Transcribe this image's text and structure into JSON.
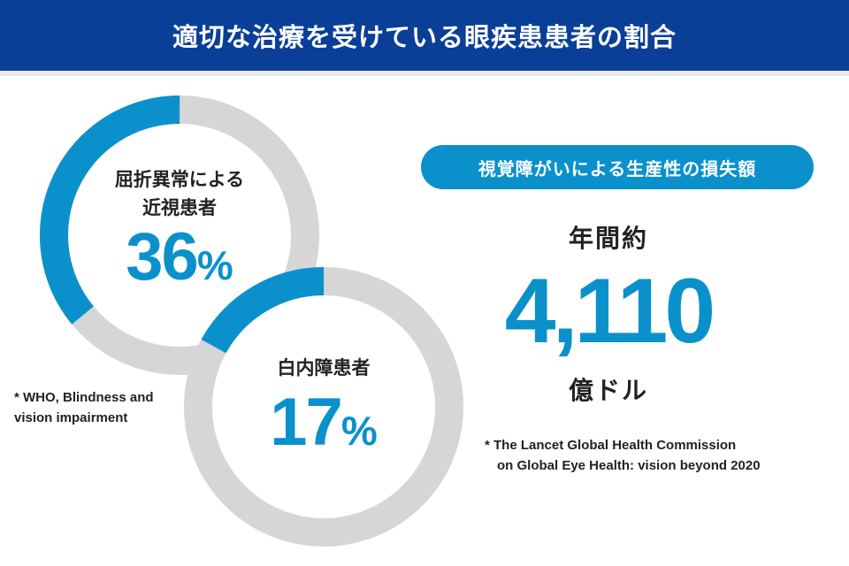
{
  "header": {
    "title": "適切な治療を受けている眼疾患患者の割合"
  },
  "colors": {
    "header_bg": "#0a3f97",
    "accent": "#0a91cc",
    "track": "#d6d6d6"
  },
  "chart_data": [
    {
      "type": "pie",
      "title": "屈折異常による近視患者",
      "label_lines": [
        "屈折異常による",
        "近視患者"
      ],
      "values": [
        36,
        64
      ],
      "value_text": "36",
      "unit": "%"
    },
    {
      "type": "pie",
      "title": "白内障患者",
      "label_lines": [
        "白内障患者"
      ],
      "values": [
        17,
        83
      ],
      "value_text": "17",
      "unit": "%"
    }
  ],
  "source_left": {
    "lines": [
      "* WHO, Blindness and",
      "vision impairment"
    ]
  },
  "loss": {
    "pill_label": "視覚障がいによる生産性の損失額",
    "prefix": "年間約",
    "amount": "4,110",
    "unit": "億ドル"
  },
  "source_right": {
    "lines": [
      "* The Lancet Global Health Commission",
      "on Global Eye Health: vision beyond 2020"
    ]
  }
}
